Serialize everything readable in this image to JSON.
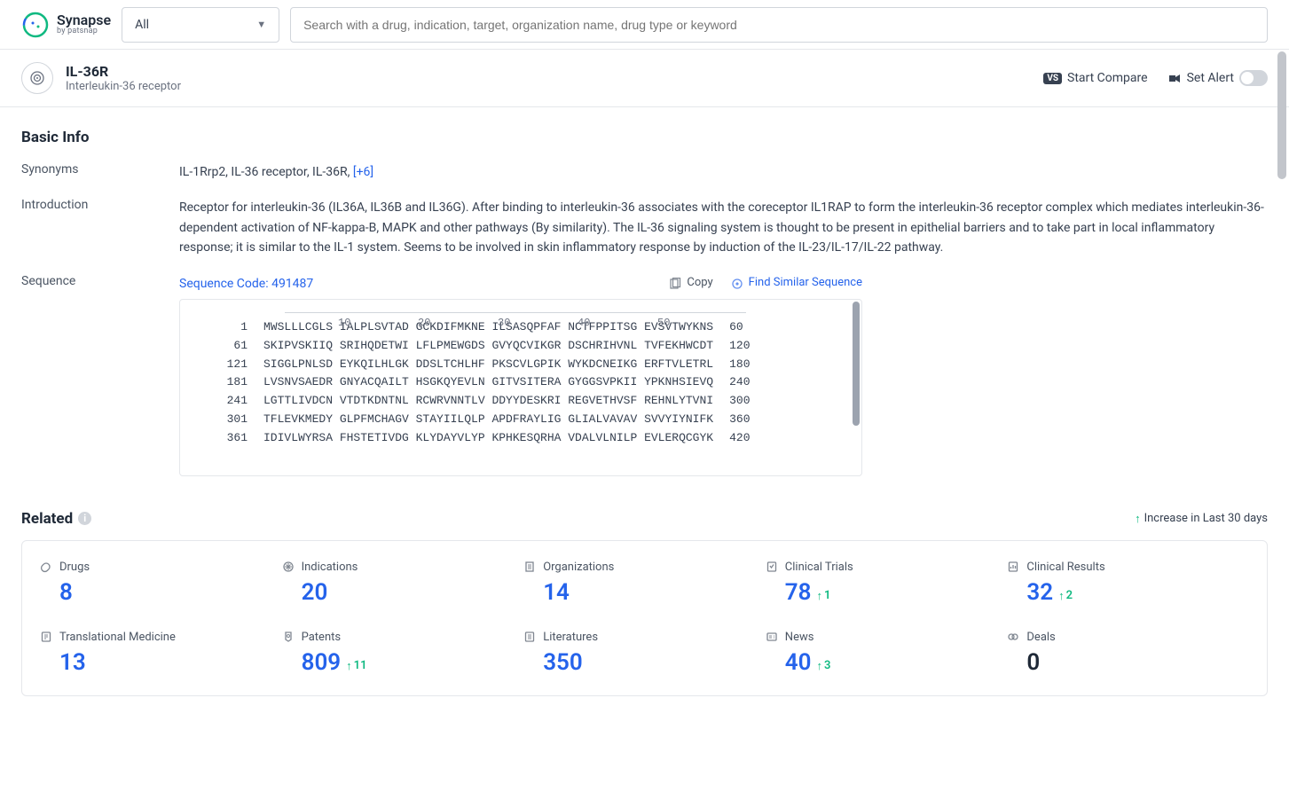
{
  "logo": {
    "name": "Synapse",
    "byline": "by patsnap"
  },
  "topbar": {
    "dropdown_label": "All",
    "search_placeholder": "Search with a drug, indication, target, organization name, drug type or keyword"
  },
  "header": {
    "title": "IL-36R",
    "subtitle": "Interleukin-36 receptor",
    "compare_label": "Start Compare",
    "alert_label": "Set Alert"
  },
  "basic_info": {
    "section_title": "Basic Info",
    "synonyms_label": "Synonyms",
    "synonyms_value": "IL-1Rrp2,  IL-36 receptor,  IL-36R,  ",
    "synonyms_more": "[+6]",
    "intro_label": "Introduction",
    "intro_text": "Receptor for interleukin-36 (IL36A, IL36B and IL36G). After binding to interleukin-36 associates with the coreceptor IL1RAP to form the interleukin-36 receptor complex which mediates interleukin-36-dependent activation of NF-kappa-B, MAPK and other pathways (By similarity). The IL-36 signaling system is thought to be present in epithelial barriers and to take part in local inflammatory response; it is similar to the IL-1 system. Seems to be involved in skin inflammatory response by induction of the IL-23/IL-17/IL-22 pathway.",
    "seq_label": "Sequence",
    "seq_code": "Sequence Code: 491487",
    "copy_label": "Copy",
    "find_similar_label": "Find Similar Sequence",
    "ruler": [
      "10",
      "20",
      "30",
      "40",
      "50"
    ],
    "seq_rows": [
      {
        "start": "1",
        "blocks": "MWSLLLCGLS IALPLSVTAD GCKDIFMKNE ILSASQPFAF NCTFPPITSG EVSVTWYKNS",
        "end": "60"
      },
      {
        "start": "61",
        "blocks": "SKIPVSKIIQ SRIHQDETWI LFLPMEWGDS GVYQCVIKGR DSCHRIHVNL TVFEKHWCDT",
        "end": "120"
      },
      {
        "start": "121",
        "blocks": "SIGGLPNLSD EYKQILHLGK DDSLTCHLHF PKSCVLGPIK WYKDCNEIKG ERFTVLETRL",
        "end": "180"
      },
      {
        "start": "181",
        "blocks": "LVSNVSAEDR GNYACQAILT HSGKQYEVLN GITVSITERA GYGGSVPKII YPKNHSIEVQ",
        "end": "240"
      },
      {
        "start": "241",
        "blocks": "LGTTLIVDCN VTDTKDNTNL RCWRVNNTLV DDYYDESKRI REGVETHVSF REHNLYTVNI",
        "end": "300"
      },
      {
        "start": "301",
        "blocks": "TFLEVKMEDY GLPFMCHAGV STAYIILQLP APDFRAYLIG GLIALVAVAV SVVYIYNIFK",
        "end": "360"
      },
      {
        "start": "361",
        "blocks": "IDIVLWYRSA FHSTETIVDG KLYDAYVLYP KPHKESQRHA VDALVLNILP EVLERQCGYK",
        "end": "420"
      }
    ]
  },
  "related": {
    "title": "Related",
    "increase_note": "Increase in Last 30 days",
    "metrics": [
      {
        "label": "Drugs",
        "value": "8",
        "delta": null
      },
      {
        "label": "Indications",
        "value": "20",
        "delta": null
      },
      {
        "label": "Organizations",
        "value": "14",
        "delta": null
      },
      {
        "label": "Clinical Trials",
        "value": "78",
        "delta": "1"
      },
      {
        "label": "Clinical Results",
        "value": "32",
        "delta": "2"
      },
      {
        "label": "Translational Medicine",
        "value": "13",
        "delta": null
      },
      {
        "label": "Patents",
        "value": "809",
        "delta": "11"
      },
      {
        "label": "Literatures",
        "value": "350",
        "delta": null
      },
      {
        "label": "News",
        "value": "40",
        "delta": "3"
      },
      {
        "label": "Deals",
        "value": "0",
        "delta": null,
        "zero": true
      }
    ]
  },
  "colors": {
    "primary": "#2563eb",
    "success": "#10b981",
    "text": "#374151"
  }
}
